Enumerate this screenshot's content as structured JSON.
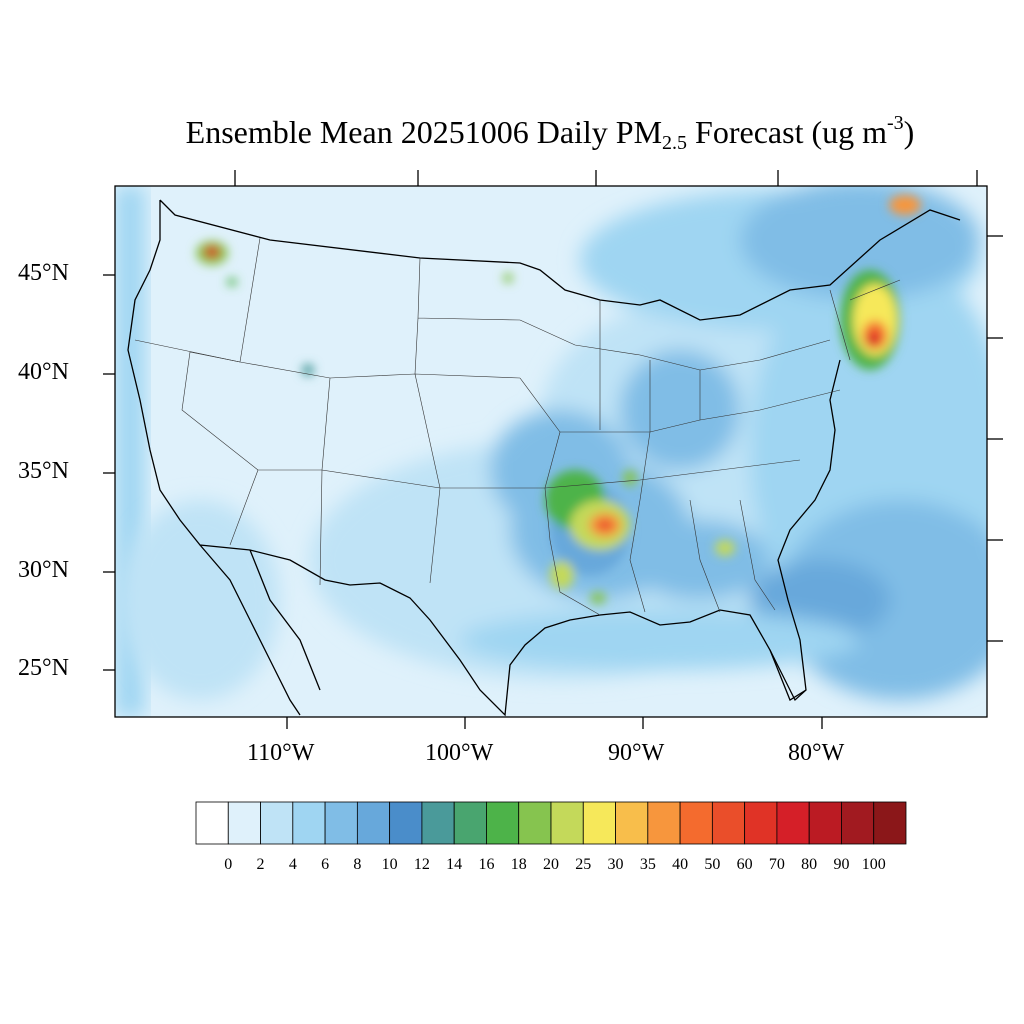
{
  "title": {
    "prefix": "Ensemble Mean 20251006 Daily PM",
    "sub": "2.5",
    "middle": " Forecast (ug m",
    "sup": "-3",
    "suffix": ")"
  },
  "lat_labels": [
    "45°N",
    "40°N",
    "35°N",
    "30°N",
    "25°N"
  ],
  "lon_labels": [
    "110°W",
    "100°W",
    "90°W",
    "80°W"
  ],
  "colorbar": {
    "labels": [
      "0",
      "2",
      "4",
      "6",
      "8",
      "10",
      "12",
      "14",
      "16",
      "18",
      "20",
      "25",
      "30",
      "35",
      "40",
      "50",
      "60",
      "70",
      "80",
      "90",
      "100"
    ],
    "colors": [
      "#ffffff",
      "#dff1fb",
      "#bfe3f6",
      "#9fd5f2",
      "#80bde6",
      "#67a8db",
      "#4a8dca",
      "#4a9a9a",
      "#49a56f",
      "#4db349",
      "#86c44f",
      "#c4d95a",
      "#f6e85a",
      "#f8be4b",
      "#f7963d",
      "#f46b2e",
      "#ea4e2a",
      "#e03326",
      "#d51f28",
      "#bb1b23",
      "#a11a20",
      "#8b1719"
    ]
  },
  "background_color": "#dff1fb"
}
